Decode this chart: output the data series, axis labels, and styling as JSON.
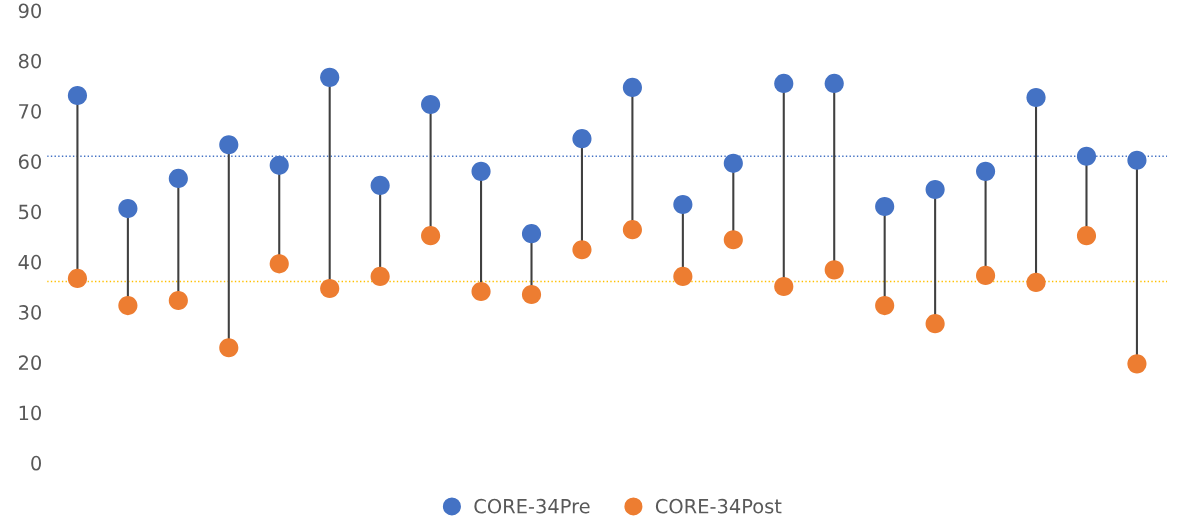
{
  "chart_data": {
    "type": "scatter",
    "categories": [
      null,
      null,
      null,
      null,
      null,
      null,
      null,
      null,
      null,
      null,
      null,
      null,
      null,
      null,
      null,
      null,
      null,
      null,
      null,
      null,
      null,
      null
    ],
    "series": [
      {
        "name": "CORE-34Pre",
        "color": "#4472c4",
        "values": [
          73.1,
          50.6,
          56.6,
          63.3,
          59.2,
          76.7,
          55.2,
          71.3,
          58.0,
          45.6,
          64.5,
          74.7,
          51.4,
          59.6,
          75.5,
          75.5,
          51.0,
          54.4,
          58.0,
          72.7,
          61.0,
          60.2
        ]
      },
      {
        "name": "CORE-34Post",
        "color": "#ed7d31",
        "values": [
          36.7,
          31.3,
          32.3,
          22.9,
          39.6,
          34.7,
          37.1,
          45.2,
          34.1,
          33.5,
          42.4,
          46.4,
          37.1,
          44.4,
          35.1,
          38.4,
          31.3,
          27.7,
          37.3,
          35.9,
          45.2,
          19.7
        ]
      }
    ],
    "ref_lines": [
      {
        "axis": "y",
        "value": 61.0,
        "color": "#4472c4",
        "line_style": "dotted"
      },
      {
        "axis": "y",
        "value": 36.1,
        "color": "#ffc000",
        "line_style": "dotted"
      }
    ],
    "ylim": [
      0,
      90
    ],
    "yticks": [
      0,
      10,
      20,
      30,
      40,
      50,
      60,
      70,
      80,
      90
    ],
    "marker": "circle",
    "legend": "bottom",
    "grid": false
  }
}
